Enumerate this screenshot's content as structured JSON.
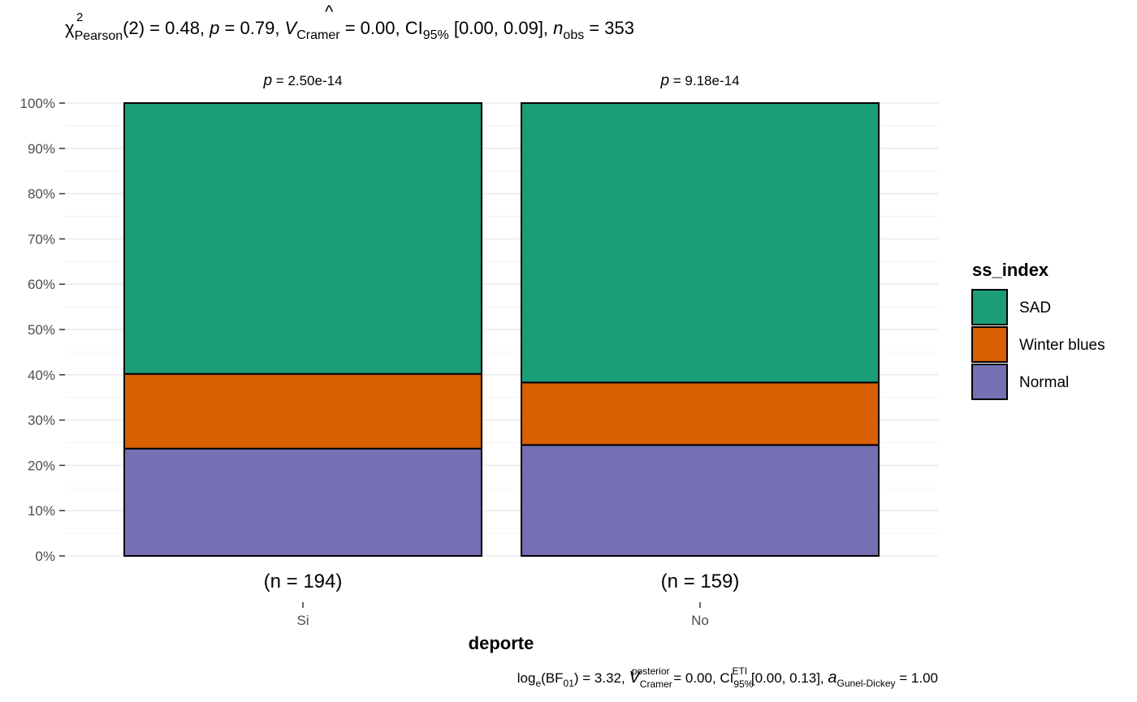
{
  "subtitle": {
    "chi": "χ",
    "chi_sup": "2",
    "chi_sub": "Pearson",
    "p1": "(2) = 0.48, ",
    "p_italic": "p",
    "p2": " = 0.79, ",
    "v_italic": "V",
    "v_sub": "Cramer",
    "p3": " = 0.00, CI",
    "ci_sub": "95%",
    "p4": " [0.00, 0.09], ",
    "n_italic": "n",
    "n_sub": "obs",
    "p5": " = 353"
  },
  "caption": {
    "log": "log",
    "log_sub": "e",
    "bf": "(BF",
    "bf_sub": "01",
    "p1": ") = 3.32, ",
    "v_italic": "V",
    "v_sup": "posterior",
    "v_sub": "Cramer",
    "p2": " = 0.00, CI",
    "ci_sup": "ETI",
    "ci_sub": "95%",
    "p3": " [0.00, 0.13], ",
    "a_italic": "a",
    "a_sub": "Gunel-Dickey",
    "p4": " = 1.00"
  },
  "legend": {
    "title": "ss_index"
  },
  "chart_data": {
    "type": "bar",
    "stacked": true,
    "percent": true,
    "categories": [
      "Si",
      "No"
    ],
    "xlabel": "deporte",
    "ylabel": "",
    "ylim": [
      0,
      100
    ],
    "yticks": [
      0,
      10,
      20,
      30,
      40,
      50,
      60,
      70,
      80,
      90,
      100
    ],
    "ytick_labels": [
      "0%",
      "10%",
      "20%",
      "30%",
      "40%",
      "50%",
      "60%",
      "70%",
      "80%",
      "90%",
      "100%"
    ],
    "counts": [
      "(n = 194)",
      "(n = 159)"
    ],
    "p_labels": {
      "prefix": "p",
      "values": [
        " = 2.50e-14",
        " = 9.18e-14"
      ]
    },
    "series": [
      {
        "name": "Normal",
        "color": "#7570B3",
        "values": [
          23.7,
          24.5
        ],
        "labels": [
          "24%",
          "25%"
        ]
      },
      {
        "name": "Winter blues",
        "color": "#D95F02",
        "values": [
          16.5,
          13.8
        ],
        "labels": [
          "16%",
          "14%"
        ]
      },
      {
        "name": "SAD",
        "color": "#1B9E77",
        "values": [
          59.8,
          61.7
        ],
        "labels": [
          "60%",
          "62%"
        ]
      }
    ],
    "legend_order": [
      "SAD",
      "Winter blues",
      "Normal"
    ],
    "legend_position": "right",
    "grid": true
  }
}
